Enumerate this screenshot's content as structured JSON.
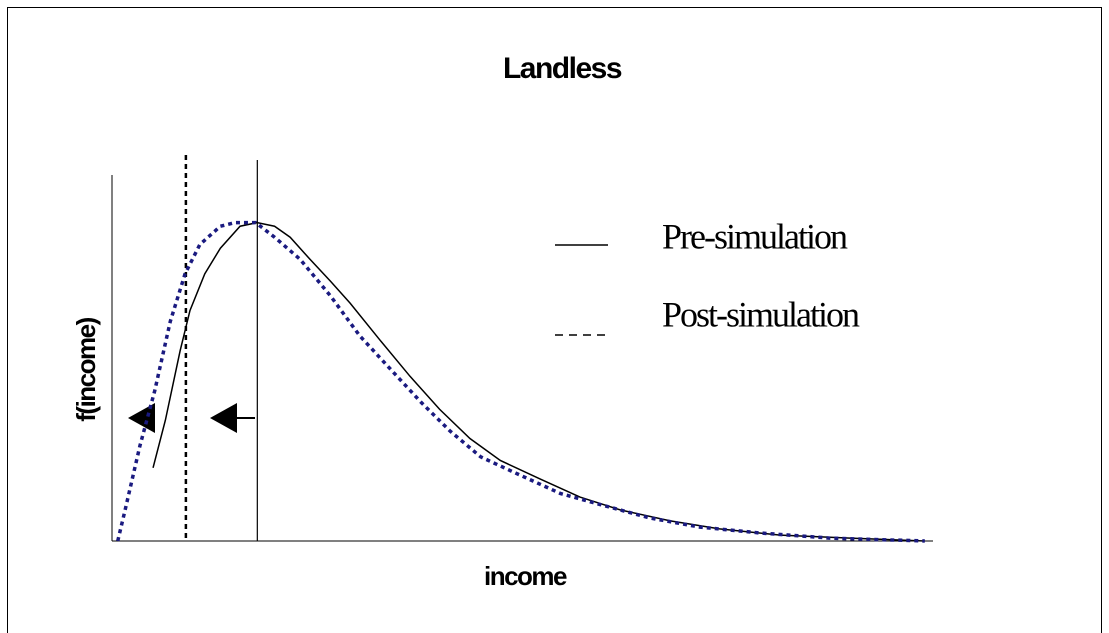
{
  "chart_data": {
    "type": "line",
    "title": "Landless",
    "x_label": "income",
    "y_label": "f(income)",
    "xlim": [
      0,
      100
    ],
    "ylim": [
      0,
      1
    ],
    "series": [
      {
        "name": "Pre-simulation",
        "color": "#000000",
        "line_style": "solid",
        "x": [
          5,
          6.5,
          8.3,
          9.5,
          11.3,
          13.2,
          15.6,
          17.7,
          19.8,
          21.7,
          24.1,
          26.6,
          29,
          32.6,
          36.3,
          39.9,
          43.6,
          47.3,
          52.1,
          57,
          61.9,
          68,
          74,
          81.4,
          89.9,
          99
        ],
        "values": [
          0.2,
          0.33,
          0.52,
          0.63,
          0.73,
          0.8,
          0.86,
          0.87,
          0.86,
          0.83,
          0.77,
          0.71,
          0.65,
          0.55,
          0.45,
          0.36,
          0.28,
          0.22,
          0.17,
          0.12,
          0.085,
          0.055,
          0.033,
          0.016,
          0.008,
          0
        ]
      },
      {
        "name": "Post-simulation",
        "color": "#1a1a80",
        "line_style": "dashed",
        "x": [
          0.7,
          1.6,
          3.4,
          5.2,
          7.1,
          8.9,
          10.7,
          13.2,
          15,
          17.5,
          19.8,
          22.9,
          26.6,
          30.2,
          33.9,
          37.6,
          41.2,
          44.9,
          49.7,
          54.6,
          59.4,
          65.5,
          71.6,
          78.9,
          87.4,
          99
        ],
        "values": [
          0,
          0.085,
          0.26,
          0.41,
          0.6,
          0.73,
          0.81,
          0.86,
          0.87,
          0.87,
          0.83,
          0.77,
          0.67,
          0.56,
          0.47,
          0.38,
          0.3,
          0.23,
          0.18,
          0.13,
          0.1,
          0.063,
          0.038,
          0.022,
          0.008,
          0
        ]
      }
    ],
    "vlines": [
      {
        "x": 17.7,
        "line_style": "solid"
      },
      {
        "x": 9,
        "line_style": "dashed"
      }
    ]
  }
}
